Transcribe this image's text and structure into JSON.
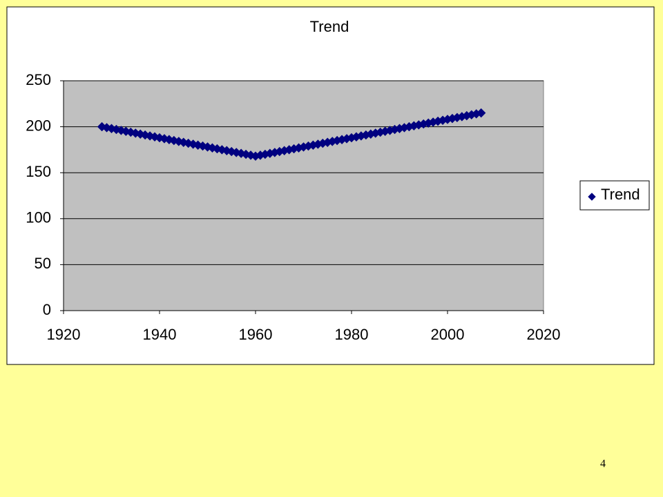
{
  "chart_data": {
    "type": "scatter",
    "title": "Trend",
    "x": [
      1928,
      1929,
      1930,
      1931,
      1932,
      1933,
      1934,
      1935,
      1936,
      1937,
      1938,
      1939,
      1940,
      1941,
      1942,
      1943,
      1944,
      1945,
      1946,
      1947,
      1948,
      1949,
      1950,
      1951,
      1952,
      1953,
      1954,
      1955,
      1956,
      1957,
      1958,
      1959,
      1960,
      1961,
      1962,
      1963,
      1964,
      1965,
      1966,
      1967,
      1968,
      1969,
      1970,
      1971,
      1972,
      1973,
      1974,
      1975,
      1976,
      1977,
      1978,
      1979,
      1980,
      1981,
      1982,
      1983,
      1984,
      1985,
      1986,
      1987,
      1988,
      1989,
      1990,
      1991,
      1992,
      1993,
      1994,
      1995,
      1996,
      1997,
      1998,
      1999,
      2000,
      2001,
      2002,
      2003,
      2004,
      2005,
      2006,
      2007
    ],
    "series": [
      {
        "name": "Trend",
        "color": "#000080",
        "values": [
          200,
          199,
          198,
          197,
          196,
          195,
          194,
          193,
          192,
          191,
          190,
          189,
          188,
          187,
          186,
          185,
          184,
          183,
          182,
          181,
          180,
          179,
          178,
          177,
          176,
          175,
          174,
          173,
          172,
          171,
          170,
          169,
          168,
          169,
          170,
          171,
          172,
          173,
          174,
          175,
          176,
          177,
          178,
          179,
          180,
          181,
          182,
          183,
          184,
          185,
          186,
          187,
          188,
          189,
          190,
          191,
          192,
          193,
          194,
          195,
          196,
          197,
          198,
          199,
          200,
          201,
          202,
          203,
          204,
          205,
          206,
          207,
          208,
          209,
          210,
          211,
          212,
          213,
          214,
          215
        ]
      }
    ],
    "xlim": [
      1920,
      2020
    ],
    "xticks": [
      1920,
      1940,
      1960,
      1980,
      2000,
      2020
    ],
    "ylim": [
      0,
      250
    ],
    "yticks": [
      0,
      50,
      100,
      150,
      200,
      250
    ],
    "grid": true,
    "legend": "right"
  },
  "slide_number": "4"
}
